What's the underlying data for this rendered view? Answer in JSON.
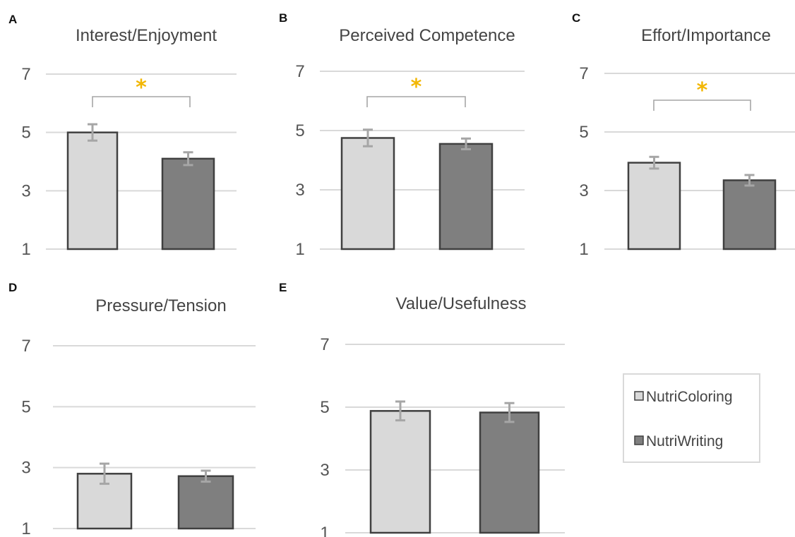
{
  "colors": {
    "nutricoloring_fill": "#d9d9d9",
    "nutriwriting_fill": "#7f7f7f",
    "bar_outline": "#404040",
    "error_bar": "#a6a6a6",
    "significance": "#f2b705"
  },
  "legend": {
    "placement": "right",
    "items": [
      {
        "label": "NutriColoring",
        "color": "#d9d9d9"
      },
      {
        "label": "NutriWriting",
        "color": "#7f7f7f"
      }
    ]
  },
  "chart_data": [
    {
      "type": "bar",
      "panel": "A",
      "title": "Interest/Enjoyment",
      "categories": [
        "NutriColoring",
        "NutriWriting"
      ],
      "values": [
        5.0,
        4.1
      ],
      "errors": [
        0.28,
        0.22
      ],
      "ylim": [
        1,
        7
      ],
      "yticks": [
        "1",
        "3",
        "5",
        "7"
      ],
      "grid": true,
      "significance": "*"
    },
    {
      "type": "bar",
      "panel": "B",
      "title": "Perceived Competence",
      "categories": [
        "NutriColoring",
        "NutriWriting"
      ],
      "values": [
        4.75,
        4.55
      ],
      "errors": [
        0.28,
        0.18
      ],
      "ylim": [
        1,
        7
      ],
      "yticks": [
        "1",
        "3",
        "5",
        "7"
      ],
      "grid": true,
      "significance": "*"
    },
    {
      "type": "bar",
      "panel": "C",
      "title": "Effort/Importance",
      "categories": [
        "NutriColoring",
        "NutriWriting"
      ],
      "values": [
        3.95,
        3.35
      ],
      "errors": [
        0.2,
        0.18
      ],
      "ylim": [
        1,
        7
      ],
      "yticks": [
        "1",
        "3",
        "5",
        "7"
      ],
      "grid": true,
      "significance": "*"
    },
    {
      "type": "bar",
      "panel": "D",
      "title": "Pressure/Tension",
      "categories": [
        "NutriColoring",
        "NutriWriting"
      ],
      "values": [
        2.8,
        2.72
      ],
      "errors": [
        0.33,
        0.18
      ],
      "ylim": [
        1,
        7
      ],
      "yticks": [
        "1",
        "3",
        "5",
        "7"
      ],
      "grid": true,
      "significance": ""
    },
    {
      "type": "bar",
      "panel": "E",
      "title": "Value/Usefulness",
      "categories": [
        "NutriColoring",
        "NutriWriting"
      ],
      "values": [
        4.88,
        4.83
      ],
      "errors": [
        0.3,
        0.3
      ],
      "ylim": [
        1,
        7
      ],
      "yticks": [
        "1",
        "3",
        "5",
        "7"
      ],
      "grid": true,
      "significance": ""
    }
  ]
}
